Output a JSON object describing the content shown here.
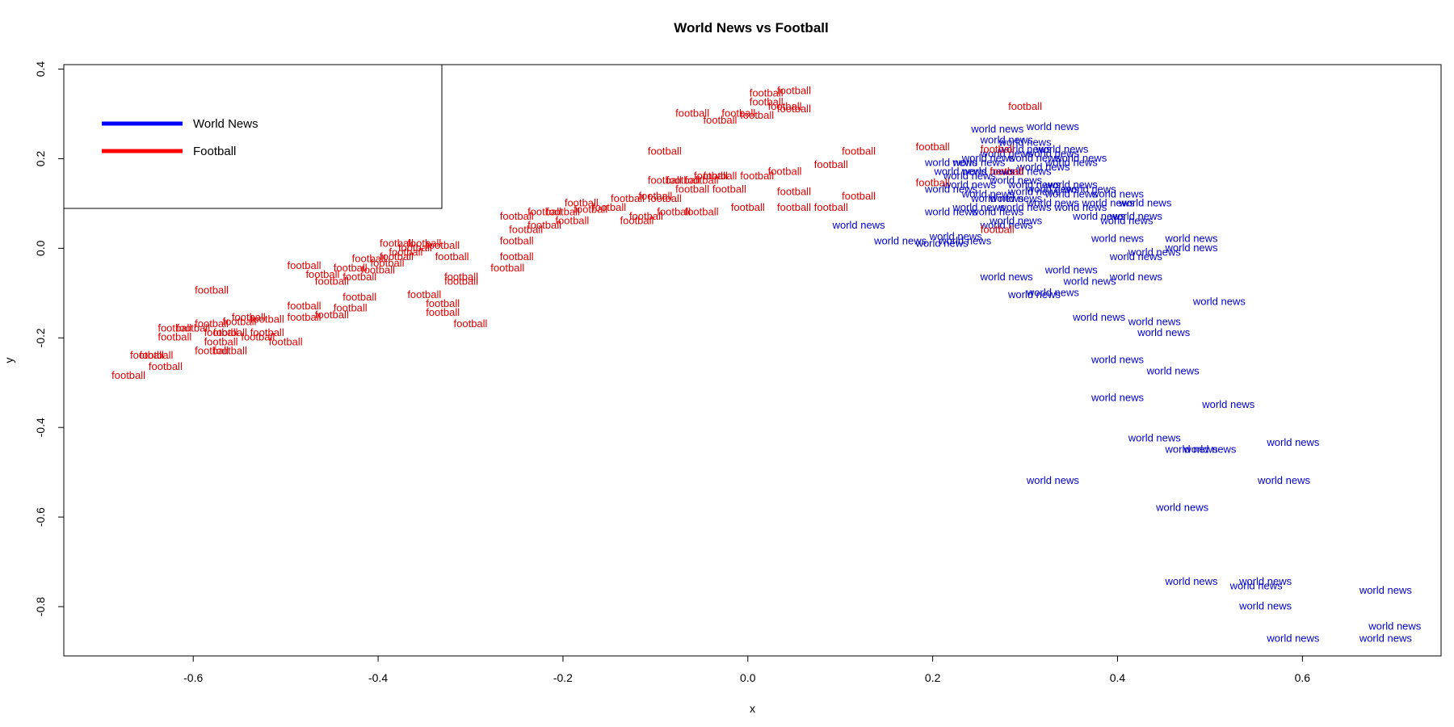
{
  "chart_data": {
    "type": "scatter",
    "title": "World News vs Football",
    "xlabel": "x",
    "ylabel": "y",
    "xlim": [
      -0.74,
      0.75
    ],
    "ylim": [
      -0.91,
      0.41
    ],
    "x_ticks": [
      "-0.6",
      "-0.4",
      "-0.2",
      "0.0",
      "0.2",
      "0.4",
      "0.6"
    ],
    "y_ticks": [
      "-0.8",
      "-0.6",
      "-0.4",
      "-0.2",
      "0.0",
      "0.2",
      "0.4"
    ],
    "grid": false,
    "legend_position": "top-left",
    "legend": [
      {
        "label": "World News",
        "color": "#0000FF"
      },
      {
        "label": "Football",
        "color": "#FF0000"
      }
    ],
    "series": [
      {
        "name": "World News",
        "point_label": "world news",
        "color": "#0000CD",
        "points": [
          [
            0.12,
            0.05
          ],
          [
            0.165,
            0.015
          ],
          [
            0.21,
            0.01
          ],
          [
            0.235,
            0.015
          ],
          [
            0.225,
            0.025
          ],
          [
            0.28,
            0.05
          ],
          [
            0.27,
            0.08
          ],
          [
            0.29,
            0.06
          ],
          [
            0.22,
            0.08
          ],
          [
            0.25,
            0.09
          ],
          [
            0.3,
            0.09
          ],
          [
            0.33,
            0.1
          ],
          [
            0.36,
            0.09
          ],
          [
            0.38,
            0.07
          ],
          [
            0.41,
            0.06
          ],
          [
            0.39,
            0.1
          ],
          [
            0.4,
            0.12
          ],
          [
            0.37,
            0.13
          ],
          [
            0.43,
            0.1
          ],
          [
            0.42,
            0.07
          ],
          [
            0.27,
            0.11
          ],
          [
            0.33,
            0.13
          ],
          [
            0.35,
            0.14
          ],
          [
            0.31,
            0.14
          ],
          [
            0.29,
            0.15
          ],
          [
            0.24,
            0.16
          ],
          [
            0.26,
            0.17
          ],
          [
            0.3,
            0.17
          ],
          [
            0.32,
            0.18
          ],
          [
            0.35,
            0.19
          ],
          [
            0.31,
            0.2
          ],
          [
            0.33,
            0.21
          ],
          [
            0.36,
            0.2
          ],
          [
            0.34,
            0.22
          ],
          [
            0.28,
            0.21
          ],
          [
            0.22,
            0.19
          ],
          [
            0.26,
            0.2
          ],
          [
            0.3,
            0.22
          ],
          [
            0.24,
            0.14
          ],
          [
            0.23,
            0.17
          ],
          [
            0.25,
            0.19
          ],
          [
            0.27,
            0.265
          ],
          [
            0.33,
            0.27
          ],
          [
            0.28,
            0.24
          ],
          [
            0.3,
            0.235
          ],
          [
            0.22,
            0.13
          ],
          [
            0.31,
            0.125
          ],
          [
            0.26,
            0.12
          ],
          [
            0.29,
            0.11
          ],
          [
            0.35,
            0.12
          ],
          [
            0.4,
            0.02
          ],
          [
            0.48,
            0.02
          ],
          [
            0.48,
            0.0
          ],
          [
            0.44,
            -0.01
          ],
          [
            0.42,
            -0.02
          ],
          [
            0.28,
            -0.065
          ],
          [
            0.35,
            -0.05
          ],
          [
            0.37,
            -0.075
          ],
          [
            0.42,
            -0.065
          ],
          [
            0.33,
            -0.1
          ],
          [
            0.31,
            -0.105
          ],
          [
            0.51,
            -0.12
          ],
          [
            0.38,
            -0.155
          ],
          [
            0.44,
            -0.165
          ],
          [
            0.45,
            -0.19
          ],
          [
            0.4,
            -0.25
          ],
          [
            0.46,
            -0.275
          ],
          [
            0.4,
            -0.335
          ],
          [
            0.52,
            -0.35
          ],
          [
            0.44,
            -0.425
          ],
          [
            0.48,
            -0.45
          ],
          [
            0.5,
            -0.45
          ],
          [
            0.59,
            -0.435
          ],
          [
            0.33,
            -0.52
          ],
          [
            0.58,
            -0.52
          ],
          [
            0.47,
            -0.58
          ],
          [
            0.48,
            -0.745
          ],
          [
            0.56,
            -0.745
          ],
          [
            0.55,
            -0.755
          ],
          [
            0.69,
            -0.765
          ],
          [
            0.56,
            -0.8
          ],
          [
            0.7,
            -0.845
          ],
          [
            0.59,
            -0.872
          ],
          [
            0.69,
            -0.872
          ]
        ]
      },
      {
        "name": "Football",
        "point_label": "football",
        "color": "#E00000",
        "points": [
          [
            -0.67,
            -0.285
          ],
          [
            -0.65,
            -0.24
          ],
          [
            -0.64,
            -0.24
          ],
          [
            -0.63,
            -0.265
          ],
          [
            -0.62,
            -0.18
          ],
          [
            -0.62,
            -0.2
          ],
          [
            -0.6,
            -0.18
          ],
          [
            -0.58,
            -0.17
          ],
          [
            -0.58,
            -0.23
          ],
          [
            -0.57,
            -0.21
          ],
          [
            -0.57,
            -0.19
          ],
          [
            -0.56,
            -0.19
          ],
          [
            -0.56,
            -0.23
          ],
          [
            -0.55,
            -0.165
          ],
          [
            -0.54,
            -0.155
          ],
          [
            -0.53,
            -0.2
          ],
          [
            -0.52,
            -0.16
          ],
          [
            -0.52,
            -0.19
          ],
          [
            -0.5,
            -0.21
          ],
          [
            -0.48,
            -0.155
          ],
          [
            -0.48,
            -0.13
          ],
          [
            -0.45,
            -0.15
          ],
          [
            -0.43,
            -0.135
          ],
          [
            -0.42,
            -0.11
          ],
          [
            -0.58,
            -0.095
          ],
          [
            -0.48,
            -0.04
          ],
          [
            -0.46,
            -0.06
          ],
          [
            -0.45,
            -0.075
          ],
          [
            -0.43,
            -0.045
          ],
          [
            -0.42,
            -0.065
          ],
          [
            -0.41,
            -0.025
          ],
          [
            -0.4,
            -0.05
          ],
          [
            -0.39,
            -0.035
          ],
          [
            -0.38,
            -0.02
          ],
          [
            -0.37,
            -0.01
          ],
          [
            -0.36,
            0.0
          ],
          [
            -0.38,
            0.01
          ],
          [
            -0.35,
            0.01
          ],
          [
            -0.33,
            0.005
          ],
          [
            -0.32,
            -0.02
          ],
          [
            -0.31,
            -0.065
          ],
          [
            -0.31,
            -0.075
          ],
          [
            -0.35,
            -0.105
          ],
          [
            -0.33,
            -0.125
          ],
          [
            -0.33,
            -0.145
          ],
          [
            -0.3,
            -0.17
          ],
          [
            -0.26,
            -0.045
          ],
          [
            -0.25,
            -0.02
          ],
          [
            -0.25,
            0.015
          ],
          [
            -0.24,
            0.04
          ],
          [
            -0.25,
            0.07
          ],
          [
            -0.22,
            0.08
          ],
          [
            -0.22,
            0.05
          ],
          [
            -0.2,
            0.08
          ],
          [
            -0.19,
            0.06
          ],
          [
            -0.18,
            0.1
          ],
          [
            -0.17,
            0.085
          ],
          [
            -0.15,
            0.09
          ],
          [
            -0.13,
            0.11
          ],
          [
            -0.12,
            0.06
          ],
          [
            -0.11,
            0.07
          ],
          [
            -0.1,
            0.115
          ],
          [
            -0.09,
            0.11
          ],
          [
            -0.09,
            0.15
          ],
          [
            -0.08,
            0.08
          ],
          [
            -0.07,
            0.15
          ],
          [
            -0.06,
            0.13
          ],
          [
            -0.05,
            0.15
          ],
          [
            -0.04,
            0.16
          ],
          [
            -0.03,
            0.16
          ],
          [
            -0.02,
            0.13
          ],
          [
            0.01,
            0.16
          ],
          [
            0.04,
            0.17
          ],
          [
            -0.05,
            0.08
          ],
          [
            0.0,
            0.09
          ],
          [
            0.05,
            0.09
          ],
          [
            0.05,
            0.125
          ],
          [
            0.09,
            0.09
          ],
          [
            0.09,
            0.185
          ],
          [
            0.12,
            0.215
          ],
          [
            0.12,
            0.115
          ],
          [
            -0.09,
            0.215
          ],
          [
            -0.06,
            0.3
          ],
          [
            -0.03,
            0.285
          ],
          [
            -0.01,
            0.3
          ],
          [
            0.01,
            0.295
          ],
          [
            0.02,
            0.325
          ],
          [
            0.04,
            0.315
          ],
          [
            0.05,
            0.31
          ],
          [
            0.02,
            0.345
          ],
          [
            0.05,
            0.35
          ],
          [
            0.2,
            0.225
          ],
          [
            0.2,
            0.145
          ],
          [
            0.27,
            0.22
          ],
          [
            0.28,
            0.17
          ],
          [
            0.3,
            0.315
          ],
          [
            0.27,
            0.04
          ]
        ]
      }
    ]
  }
}
